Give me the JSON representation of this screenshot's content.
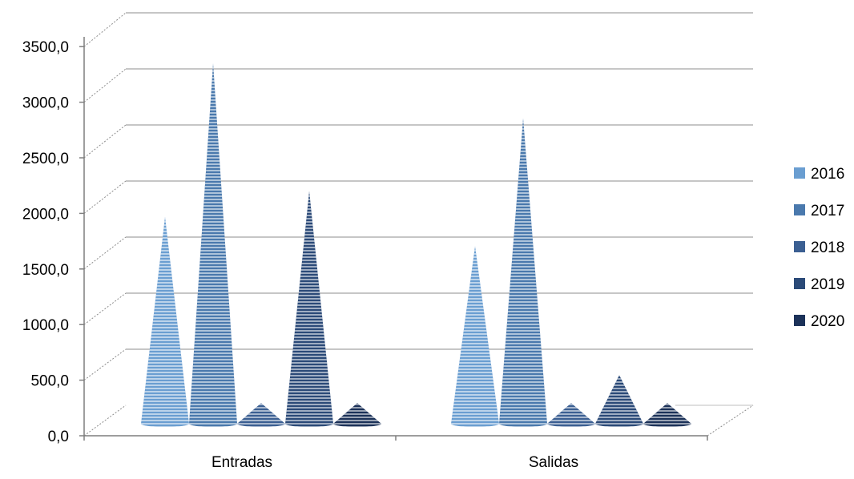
{
  "chart_data": {
    "type": "bar",
    "subtype": "3d-cone",
    "categories": [
      "Entradas",
      "Salidas"
    ],
    "series": [
      {
        "name": "2016",
        "values": [
          1680,
          1420
        ],
        "color": "#6a9ed1"
      },
      {
        "name": "2017",
        "values": [
          3050,
          2560
        ],
        "color": "#4a79ad"
      },
      {
        "name": "2018",
        "values": [
          20,
          20
        ],
        "color": "#3b5f92"
      },
      {
        "name": "2019",
        "values": [
          1910,
          270
        ],
        "color": "#2b4a78"
      },
      {
        "name": "2020",
        "values": [
          20,
          20
        ],
        "color": "#1c3259"
      }
    ],
    "y_ticks": [
      "0,0",
      "500,0",
      "1000,0",
      "1500,0",
      "2000,0",
      "2500,0",
      "3000,0",
      "3500,0"
    ],
    "ylim": [
      0,
      3500
    ],
    "grid": true,
    "legend": "right"
  }
}
